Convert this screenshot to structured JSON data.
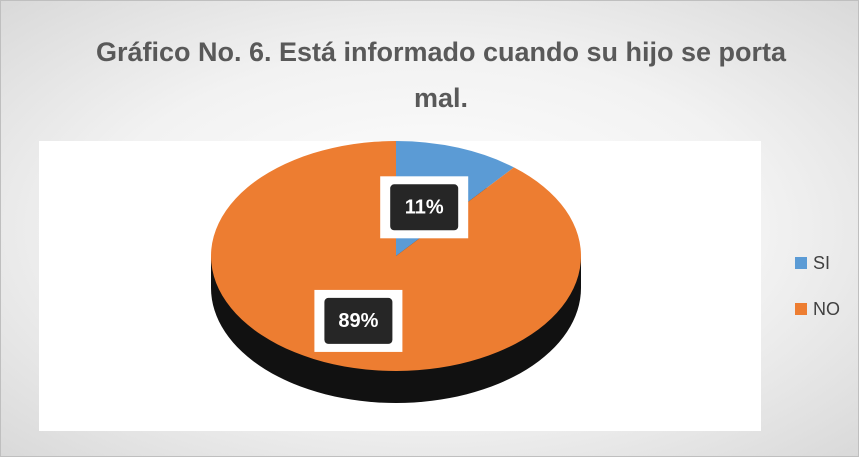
{
  "chart_data": {
    "type": "pie",
    "title": "Gráfico No. 6. Está informado cuando su hijo se porta mal.",
    "categories": [
      "SI",
      "NO"
    ],
    "values": [
      11,
      89
    ],
    "value_labels": [
      "11%",
      "89%"
    ],
    "colors": [
      "#5b9bd5",
      "#ed7d31"
    ],
    "legend": "right"
  }
}
